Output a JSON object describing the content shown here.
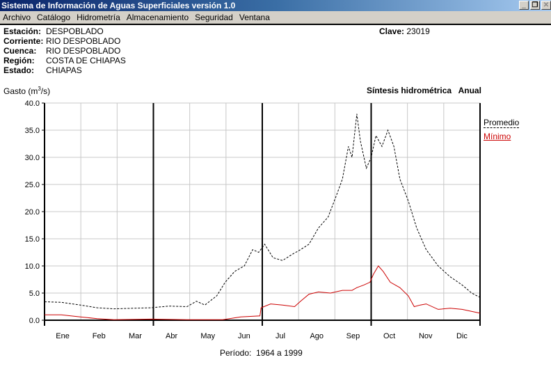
{
  "window": {
    "title": "Sistema de Información de Aguas Superficiales  versión 1.0",
    "controls": [
      "minimize",
      "restore",
      "close"
    ]
  },
  "menu": [
    "Archivo",
    "Catálogo",
    "Hidrometría",
    "Almacenamiento",
    "Seguridad",
    "Ventana"
  ],
  "station": {
    "fields": [
      {
        "label": "Estación:",
        "value": "DESPOBLADO"
      },
      {
        "label": "Corriente:",
        "value": "RIO DESPOBLADO"
      },
      {
        "label": "Cuenca:",
        "value": "RIO DESPOBLADO"
      },
      {
        "label": "Región:",
        "value": "COSTA DE CHIAPAS"
      },
      {
        "label": "Estado:",
        "value": "CHIAPAS"
      }
    ],
    "clave_label": "Clave:",
    "clave": "23019"
  },
  "chart_data": {
    "type": "line",
    "title": "Síntesis hidrométrica   Anual",
    "ylabel_prefix": "Gasto (m",
    "ylabel_sup": "3",
    "ylabel_suffix": "/s)",
    "ylim": [
      0,
      40
    ],
    "yticks": [
      "0.0",
      "5.0",
      "10.0",
      "15.0",
      "20.0",
      "25.0",
      "30.0",
      "35.0",
      "40.0"
    ],
    "months": [
      "Ene",
      "Feb",
      "Mar",
      "Abr",
      "May",
      "Jun",
      "Jul",
      "Ago",
      "Sep",
      "Oct",
      "Nov",
      "Dic"
    ],
    "grid": true,
    "legend_position": "right",
    "series": [
      {
        "name": "Promedio",
        "color": "#000000",
        "style": "dashed",
        "x": [
          1,
          15,
          31,
          45,
          59,
          75,
          90,
          105,
          120,
          128,
          135,
          145,
          152,
          160,
          168,
          175,
          180,
          185,
          192,
          200,
          207,
          215,
          222,
          230,
          238,
          245,
          250,
          255,
          258,
          262,
          265,
          270,
          274,
          278,
          283,
          288,
          293,
          298,
          305,
          312,
          320,
          330,
          340,
          350,
          358,
          365
        ],
        "y": [
          3.4,
          3.3,
          2.8,
          2.3,
          2.1,
          2.2,
          2.3,
          2.6,
          2.5,
          3.5,
          2.8,
          4.5,
          7,
          9,
          10,
          13,
          12.5,
          14,
          11.5,
          11,
          12,
          13,
          14,
          17,
          19,
          23,
          26,
          32,
          30,
          38,
          33,
          28,
          30,
          34,
          32,
          35,
          32,
          26,
          22,
          17,
          13,
          10,
          8,
          6.5,
          5,
          4.2
        ]
      },
      {
        "name": "Mínimo",
        "color": "#cc0000",
        "style": "solid",
        "x": [
          1,
          15,
          31,
          45,
          59,
          90,
          120,
          150,
          165,
          181,
          182,
          190,
          200,
          210,
          215,
          222,
          230,
          240,
          250,
          258,
          262,
          268,
          273,
          276,
          280,
          284,
          290,
          298,
          305,
          310,
          315,
          320,
          330,
          340,
          350,
          365
        ],
        "y": [
          1.0,
          1.0,
          0.6,
          0.3,
          0.1,
          0.2,
          0.1,
          0.1,
          0.6,
          0.8,
          2.3,
          3.0,
          2.8,
          2.5,
          3.5,
          4.8,
          5.2,
          5.0,
          5.5,
          5.5,
          6,
          6.5,
          7,
          8.5,
          10,
          9,
          7,
          6,
          4.5,
          2.5,
          2.8,
          3.0,
          2.0,
          2.2,
          2.0,
          1.3
        ]
      }
    ],
    "periodo": "Período:  1964 a 1999"
  }
}
